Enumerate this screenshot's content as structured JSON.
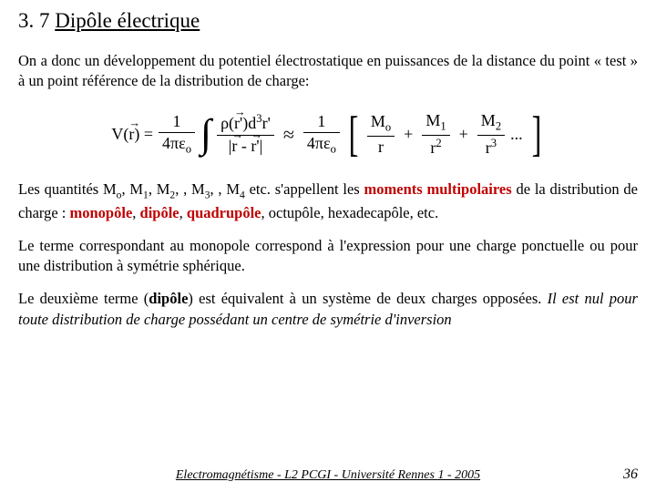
{
  "title_num": "3. 7",
  "title_text": "Dipôle électrique",
  "para1": "On a donc un développement du potentiel électrostatique en puissances de la distance du point « test » à un point référence de la distribution de charge:",
  "eq": {
    "lhs_V": "V(",
    "lhs_r": "r",
    "lhs_close": ") =",
    "frac1_num": "1",
    "frac1_den": "4πε",
    "eps_sub": "o",
    "integ_num_rho": "ρ(",
    "integ_num_r": "r",
    "integ_num_close": "')d",
    "integ_num_sup": "3",
    "integ_num_r2": "r'",
    "integ_den_open": "|",
    "integ_den_r": "r",
    "integ_den_mid": " - ",
    "integ_den_r2": "r",
    "integ_den_close": "'|",
    "approx": "≈",
    "m0": "M",
    "m0_sub": "o",
    "m0_den": "r",
    "m1": "M",
    "m1_sub": "1",
    "m1_den": "r",
    "m1_den_sup": "2",
    "m2": "M",
    "m2_sub": "2",
    "m2_den": "r",
    "m2_den_sup": "3",
    "dots": "...",
    "plus": "+"
  },
  "para2_a": "Les quantités M",
  "para2_b": ", M",
  "para2_c": " etc. s'appellent les ",
  "para2_moments": "moments multipolaires",
  "para2_d": " de la distribution de charge : ",
  "para2_monopole": "monopôle",
  "para2_dipole": "dipôle",
  "para2_quadrupole": "quadrupôle",
  "para2_e": ", octupôle, hexadecapôle, etc.",
  "para2_sep": ", ",
  "s_o": "o",
  "s_1": "1",
  "s_2": "2",
  "s_3": "3",
  "s_4": "4",
  "para3": "Le terme correspondant au monopole correspond à l'expression pour une charge ponctuelle ou pour une distribution à symétrie sphérique.",
  "para4_a": "Le deuxième terme (",
  "para4_dipole": "dipôle",
  "para4_b": ") est équivalent à un système de deux charges opposées. ",
  "para4_italic": "Il est nul pour toute distribution de charge possédant un centre de symétrie d'inversion",
  "footer_center": "Electromagnétisme - L2 PCGI - Université Rennes 1 - 2005",
  "footer_page": "36"
}
